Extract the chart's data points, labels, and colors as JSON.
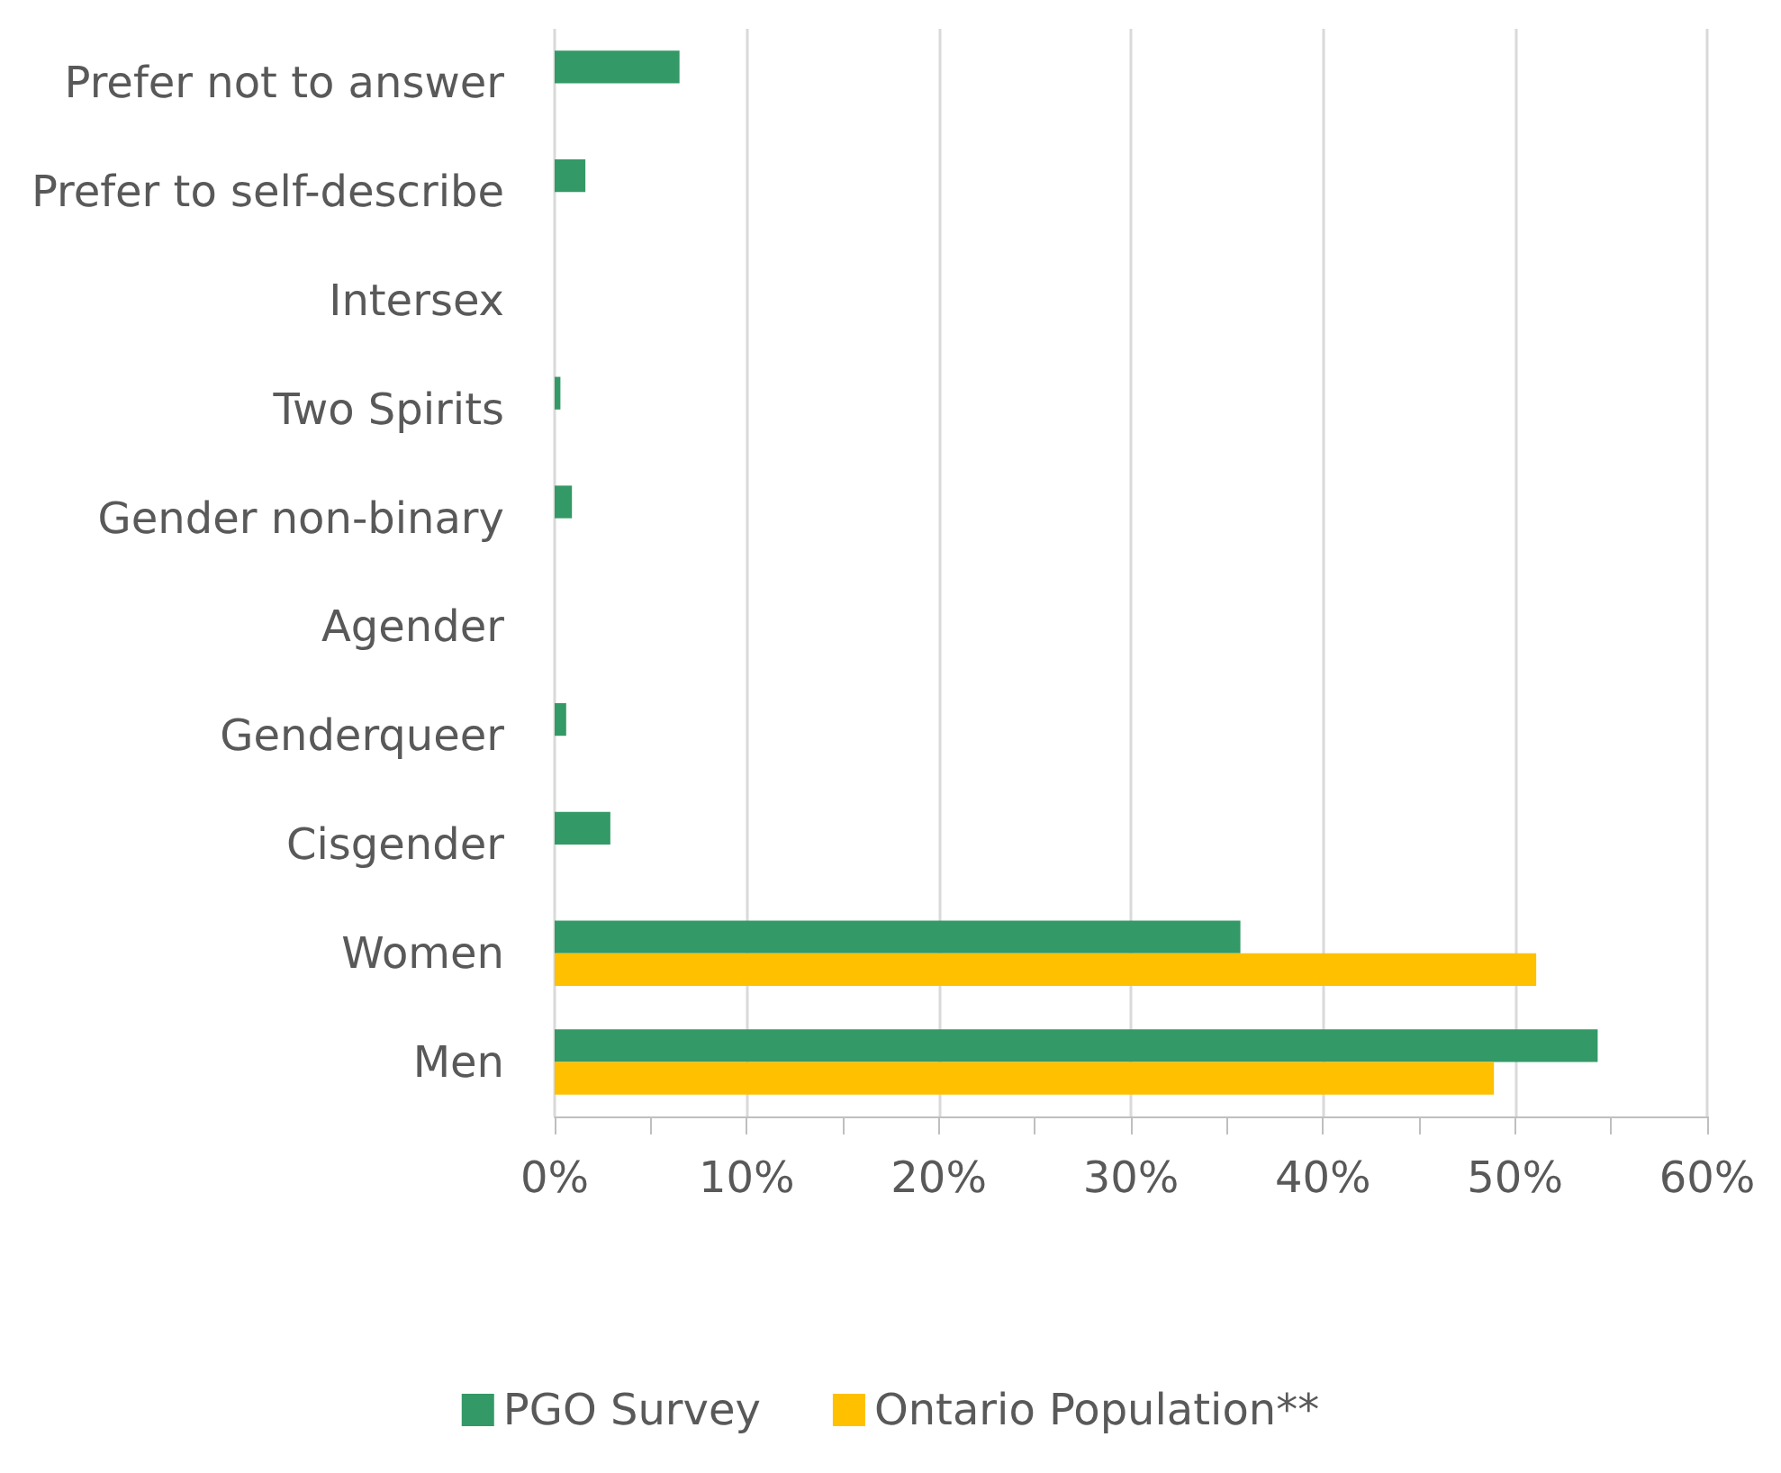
{
  "chart_data": {
    "type": "bar",
    "orientation": "horizontal",
    "categories": [
      "Prefer not to answer",
      "Prefer to self-describe",
      "Intersex",
      "Two Spirits",
      "Gender non-binary",
      "Agender",
      "Genderqueer",
      "Cisgender",
      "Women",
      "Men"
    ],
    "series": [
      {
        "name": "PGO Survey",
        "color": "#339966",
        "values": [
          6.5,
          1.6,
          0,
          0.3,
          0.9,
          0,
          0.6,
          2.9,
          35.7,
          54.3
        ]
      },
      {
        "name": "Ontario Population**",
        "color": "#ffc000",
        "values": [
          null,
          null,
          null,
          null,
          null,
          null,
          null,
          null,
          51.1,
          48.9
        ]
      }
    ],
    "xlim": [
      0,
      60
    ],
    "xticks": [
      {
        "value": 0,
        "label": "0%"
      },
      {
        "value": 5,
        "label": null
      },
      {
        "value": 10,
        "label": "10%"
      },
      {
        "value": 15,
        "label": null
      },
      {
        "value": 20,
        "label": "20%"
      },
      {
        "value": 25,
        "label": null
      },
      {
        "value": 30,
        "label": "30%"
      },
      {
        "value": 35,
        "label": null
      },
      {
        "value": 40,
        "label": "40%"
      },
      {
        "value": 45,
        "label": null
      },
      {
        "value": 50,
        "label": "50%"
      },
      {
        "value": 55,
        "label": null
      },
      {
        "value": 60,
        "label": "60%"
      }
    ],
    "grid": "x",
    "legend": "bottom"
  }
}
